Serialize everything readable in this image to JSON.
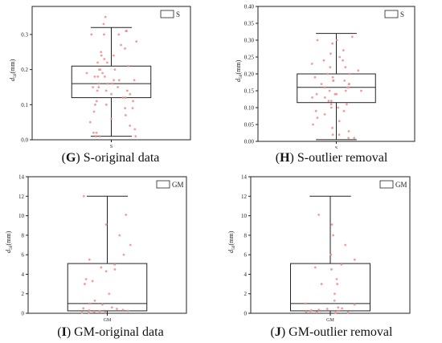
{
  "chart_data": [
    {
      "type": "box",
      "id": "G",
      "caption_letter": "G",
      "caption_text": "S-original data",
      "ylabel_main": "d",
      "ylabel_sub": "50",
      "ylabel_unit": "(mm)",
      "ylim": [
        0,
        0.38
      ],
      "yticks": [
        "0.0",
        "0.1",
        "0.2",
        "0.3"
      ],
      "ytick_values": [
        0,
        0.1,
        0.2,
        0.3
      ],
      "category": "S",
      "legend": "S",
      "box": {
        "min": 0.01,
        "q1": 0.12,
        "median": 0.16,
        "q3": 0.21,
        "max": 0.32
      },
      "points": [
        0.35,
        0.33,
        0.31,
        0.31,
        0.3,
        0.3,
        0.3,
        0.28,
        0.27,
        0.26,
        0.25,
        0.24,
        0.24,
        0.23,
        0.22,
        0.22,
        0.21,
        0.2,
        0.2,
        0.2,
        0.19,
        0.19,
        0.18,
        0.18,
        0.18,
        0.17,
        0.17,
        0.17,
        0.16,
        0.16,
        0.16,
        0.15,
        0.15,
        0.15,
        0.14,
        0.14,
        0.14,
        0.13,
        0.13,
        0.12,
        0.12,
        0.11,
        0.11,
        0.1,
        0.1,
        0.09,
        0.09,
        0.08,
        0.07,
        0.06,
        0.05,
        0.04,
        0.03,
        0.02,
        0.02,
        0.01,
        0.01,
        0.01
      ]
    },
    {
      "type": "box",
      "id": "H",
      "caption_letter": "H",
      "caption_text": "S-outlier removal",
      "ylabel_main": "d",
      "ylabel_sub": "50",
      "ylabel_unit": "(mm)",
      "ylim": [
        0,
        0.4
      ],
      "yticks": [
        "0.00",
        "0.05",
        "0.10",
        "0.15",
        "0.20",
        "0.25",
        "0.30",
        "0.35",
        "0.40"
      ],
      "ytick_values": [
        0,
        0.05,
        0.1,
        0.15,
        0.2,
        0.25,
        0.3,
        0.35,
        0.4
      ],
      "category": "S",
      "legend": "S",
      "box": {
        "min": 0.005,
        "q1": 0.115,
        "median": 0.16,
        "q3": 0.2,
        "max": 0.32
      },
      "points": [
        0.31,
        0.3,
        0.3,
        0.29,
        0.27,
        0.26,
        0.25,
        0.24,
        0.24,
        0.23,
        0.22,
        0.22,
        0.21,
        0.2,
        0.2,
        0.19,
        0.19,
        0.18,
        0.18,
        0.18,
        0.17,
        0.17,
        0.17,
        0.16,
        0.16,
        0.16,
        0.15,
        0.15,
        0.15,
        0.14,
        0.14,
        0.14,
        0.13,
        0.13,
        0.12,
        0.12,
        0.11,
        0.11,
        0.1,
        0.1,
        0.09,
        0.09,
        0.08,
        0.07,
        0.06,
        0.05,
        0.04,
        0.03,
        0.02,
        0.02,
        0.01,
        0.01
      ]
    },
    {
      "type": "box",
      "id": "I",
      "caption_letter": "I",
      "caption_text": "GM-original data",
      "ylabel_main": "d",
      "ylabel_sub": "50",
      "ylabel_unit": "(mm)",
      "ylim": [
        0,
        14
      ],
      "yticks": [
        "0",
        "2",
        "4",
        "6",
        "8",
        "10",
        "12",
        "14"
      ],
      "ytick_values": [
        0,
        2,
        4,
        6,
        8,
        10,
        12,
        14
      ],
      "category": "GM",
      "legend": "GM",
      "box": {
        "min": 0,
        "q1": 0.25,
        "median": 1.0,
        "q3": 5.1,
        "max": 12
      },
      "points": [
        12,
        10.1,
        9.1,
        8.0,
        7.0,
        6.0,
        5.5,
        5.0,
        4.7,
        4.5,
        4.3,
        3.5,
        3.3,
        3.0,
        2.0,
        1.3,
        1.0,
        0.9,
        0.6,
        0.5,
        0.45,
        0.35,
        0.3,
        0.25,
        0.2,
        0.15,
        0.1,
        0.08,
        0.05
      ]
    },
    {
      "type": "box",
      "id": "J",
      "caption_letter": "J",
      "caption_text": "GM-outlier removal",
      "ylabel_main": "d",
      "ylabel_sub": "50",
      "ylabel_unit": "(mm)",
      "ylim": [
        0,
        14
      ],
      "yticks": [
        "0",
        "2",
        "4",
        "6",
        "8",
        "10",
        "12",
        "14"
      ],
      "ytick_values": [
        0,
        2,
        4,
        6,
        8,
        10,
        12,
        14
      ],
      "category": "GM",
      "legend": "GM",
      "box": {
        "min": 0,
        "q1": 0.25,
        "median": 1.0,
        "q3": 5.1,
        "max": 12
      },
      "points": [
        10.1,
        9.1,
        8.0,
        7.0,
        6.0,
        5.5,
        5.0,
        4.7,
        4.5,
        3.5,
        3.0,
        3.0,
        2.0,
        1.3,
        1.0,
        0.9,
        0.6,
        0.5,
        0.45,
        0.35,
        0.3,
        0.25,
        0.2,
        0.15,
        0.1,
        0.08,
        0.05
      ]
    }
  ]
}
